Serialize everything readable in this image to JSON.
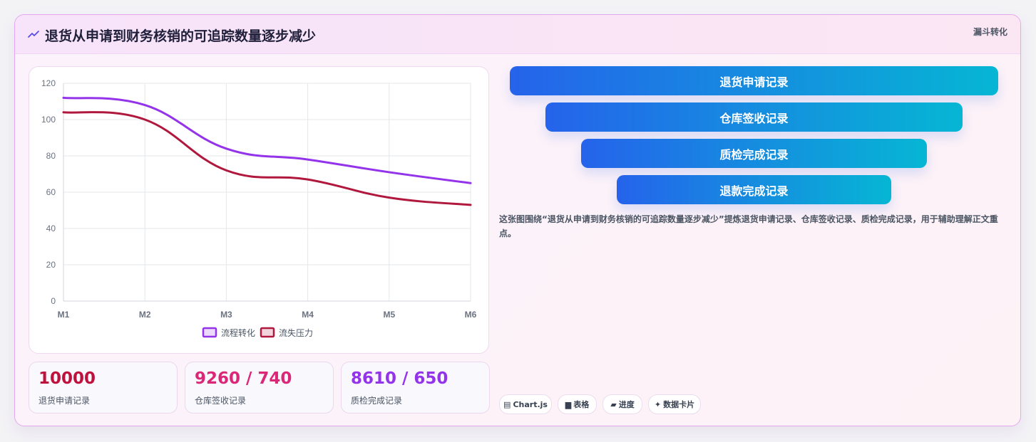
{
  "header": {
    "title": "退货从申请到财务核销的可追踪数量逐步减少",
    "badge": "漏斗转化"
  },
  "stats": [
    {
      "value": "10000",
      "label": "退货申请记录",
      "color": "#be123c"
    },
    {
      "value": "9260 / 740",
      "label": "仓库签收记录",
      "color": "#db2777"
    },
    {
      "value": "8610 / 650",
      "label": "质检完成记录",
      "color": "#9333ea"
    }
  ],
  "funnel": [
    {
      "label": "退货申请记录"
    },
    {
      "label": "仓库签收记录"
    },
    {
      "label": "质检完成记录"
    },
    {
      "label": "退款完成记录"
    }
  ],
  "description": "这张图围绕“退货从申请到财务核销的可追踪数量逐步减少”提炼退货申请记录、仓库签收记录、质检完成记录，用于辅助理解正文重点。",
  "tags": [
    {
      "icon": "chart-icon",
      "glyph": "▤",
      "label": "Chart.js"
    },
    {
      "icon": "table-icon",
      "glyph": "▆",
      "label": "表格"
    },
    {
      "icon": "progress-icon",
      "glyph": "▰",
      "label": "进度"
    },
    {
      "icon": "sparkle-icon",
      "glyph": "✦",
      "label": "数据卡片"
    }
  ],
  "chart_data": {
    "type": "line",
    "categories": [
      "M1",
      "M2",
      "M3",
      "M4",
      "M5",
      "M6"
    ],
    "series": [
      {
        "name": "流程转化",
        "values": [
          112,
          108,
          84,
          78,
          71,
          65
        ],
        "color": "#9333ea"
      },
      {
        "name": "流失压力",
        "values": [
          104,
          100,
          72,
          67,
          57,
          53
        ],
        "color": "#b0183d"
      }
    ],
    "ylim": [
      0,
      120
    ],
    "yticks": [
      0,
      20,
      40,
      60,
      80,
      100,
      120
    ],
    "grid": true,
    "legend": "bottom"
  }
}
